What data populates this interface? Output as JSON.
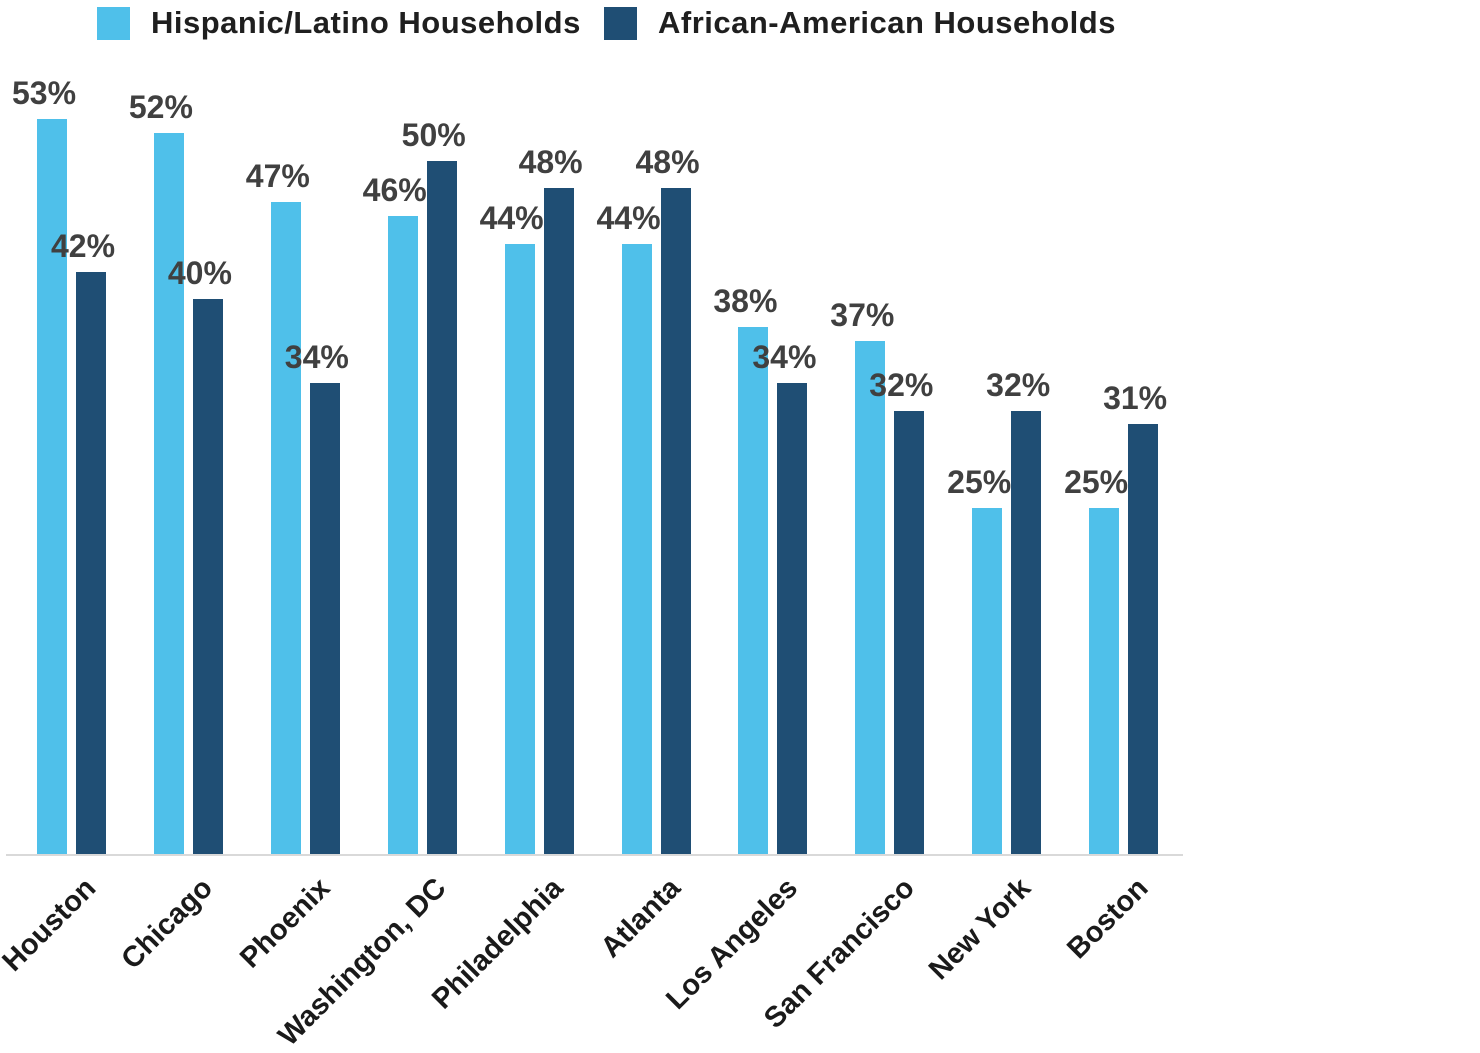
{
  "chart_data": {
    "type": "bar",
    "title": "",
    "categories": [
      "Houston",
      "Chicago",
      "Phoenix",
      "Washington, DC",
      "Philadelphia",
      "Atlanta",
      "Los Angeles",
      "San Francisco",
      "New York",
      "Boston"
    ],
    "series": [
      {
        "name": "Hispanic/Latino Households",
        "color": "#4FC0EA",
        "values": [
          53,
          52,
          47,
          46,
          44,
          44,
          38,
          37,
          25,
          25
        ]
      },
      {
        "name": "African-American Households",
        "color": "#1F4E74",
        "values": [
          42,
          40,
          34,
          50,
          48,
          48,
          34,
          32,
          32,
          31
        ]
      }
    ],
    "value_suffix": "%",
    "xlabel": "",
    "ylabel": "",
    "ylim": [
      0,
      60
    ],
    "grid": false,
    "y_axis_visible": false,
    "legend_position": "top",
    "axis_line_color": "#d9d9d9",
    "value_label_color": "#404040",
    "category_label_color": "#1a1a1a"
  }
}
